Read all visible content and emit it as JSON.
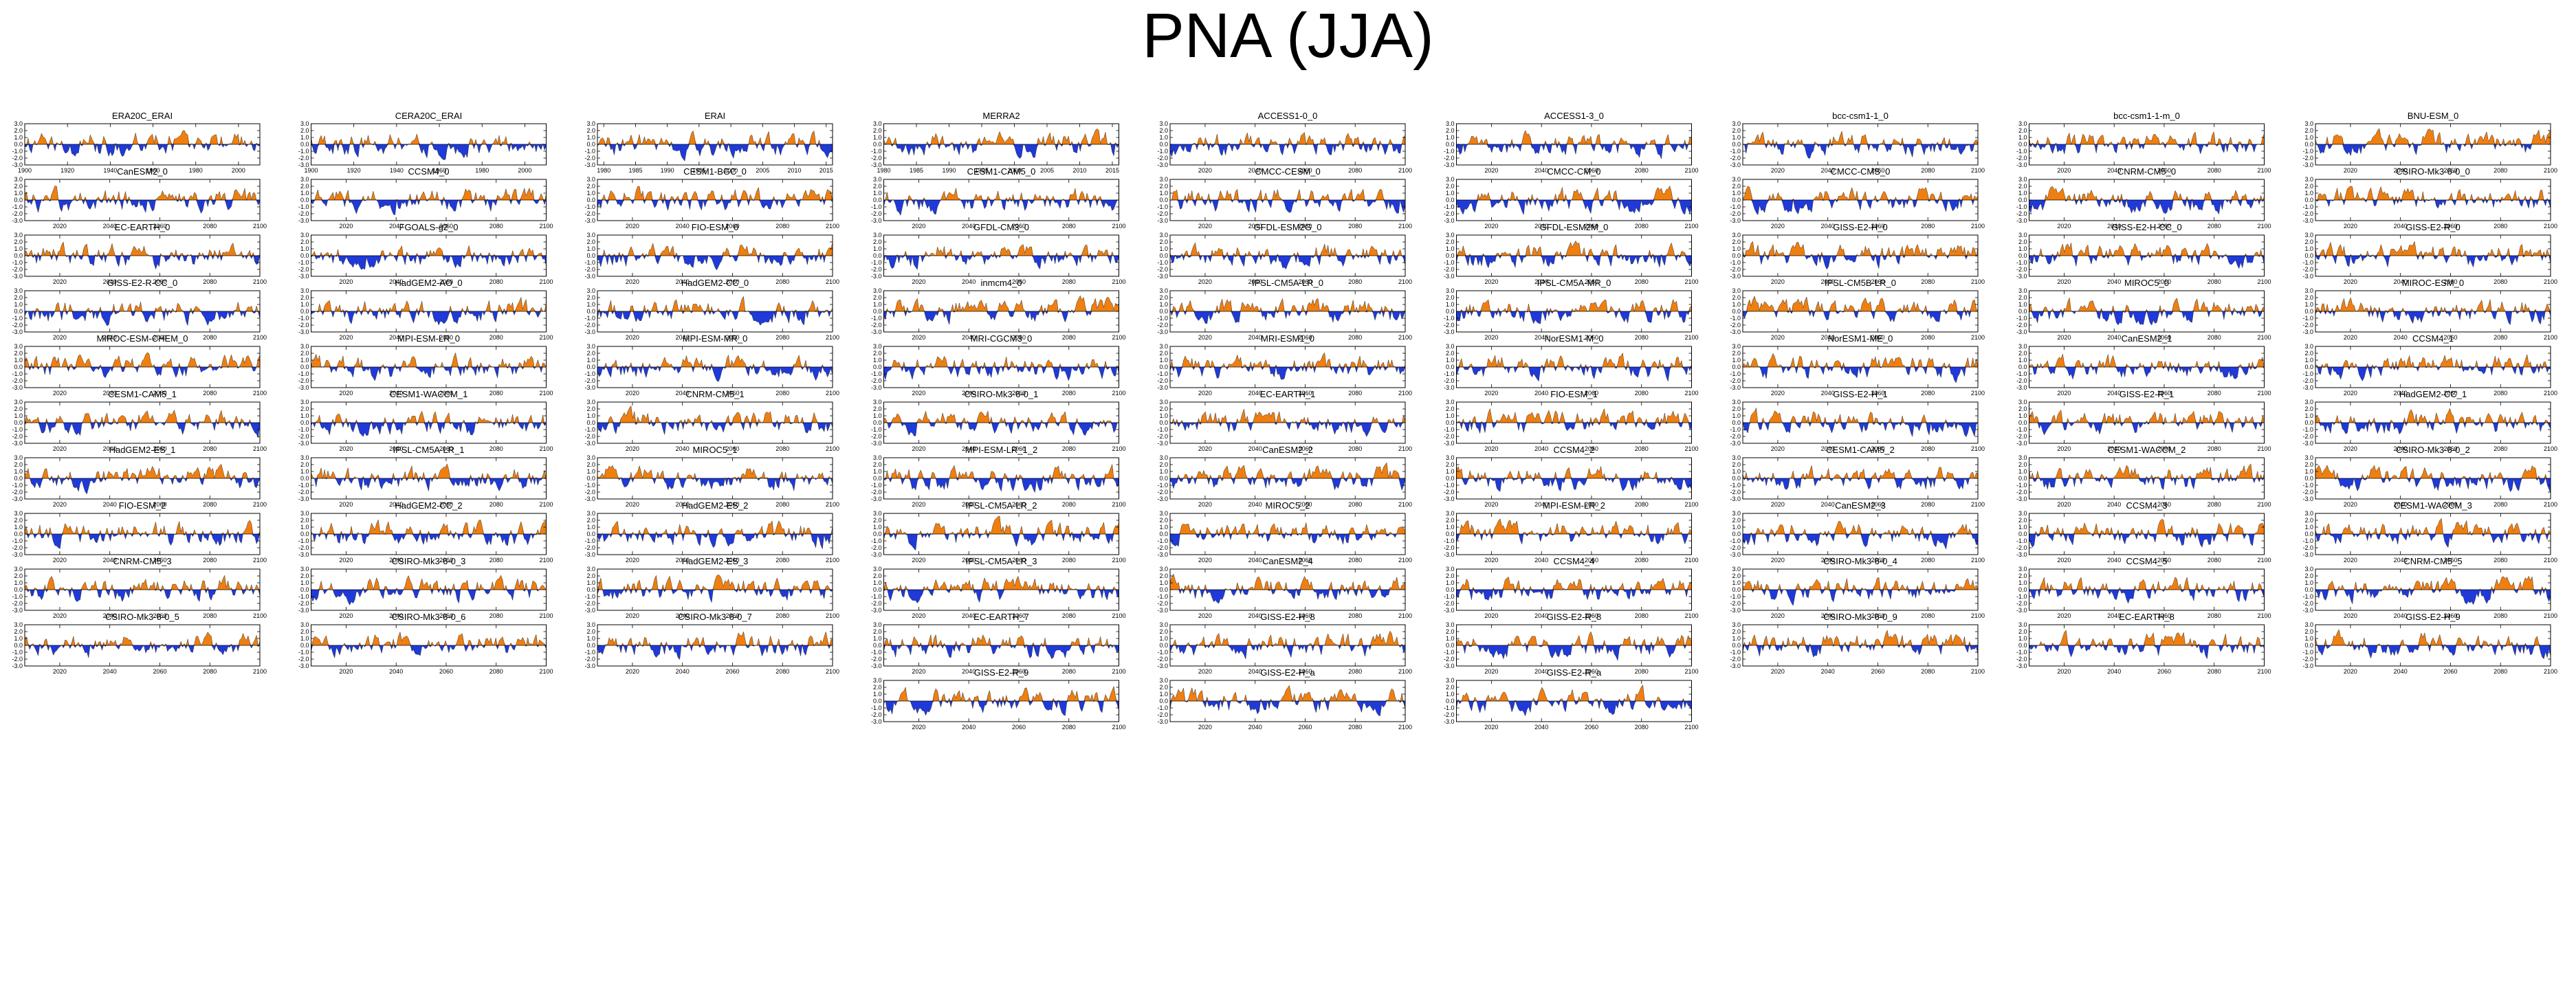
{
  "title": "PNA (JJA)",
  "colors": {
    "positive": "#f07f10",
    "negative": "#1f3ad9",
    "axis": "#000000"
  },
  "chart_data": {
    "type": "area",
    "ylim": [
      -3.0,
      3.0
    ],
    "y_ticks": [
      "3.0",
      "2.0",
      "1.0",
      "0.0",
      "-1.0",
      "-2.0",
      "-3.0"
    ],
    "grid": false,
    "legend": "none",
    "x_axes": {
      "era20c": {
        "xlim": [
          1900,
          2010
        ],
        "ticks": [
          "1900",
          "1920",
          "1940",
          "1960",
          "1980",
          "2000"
        ],
        "tick_values": [
          1900,
          1920,
          1940,
          1960,
          1980,
          2000
        ]
      },
      "erai": {
        "xlim": [
          1979,
          2016
        ],
        "ticks": [
          "1980",
          "1985",
          "1990",
          "1995",
          "2000",
          "2005",
          "2010",
          "2015"
        ],
        "tick_values": [
          1980,
          1985,
          1990,
          1995,
          2000,
          2005,
          2010,
          2015
        ]
      },
      "merra": {
        "xlim": [
          1980,
          2016
        ],
        "ticks": [
          "1980",
          "1985",
          "1990",
          "1995",
          "2000",
          "2005",
          "2010",
          "2015"
        ],
        "tick_values": [
          1980,
          1985,
          1990,
          1995,
          2000,
          2005,
          2010,
          2015
        ]
      },
      "future": {
        "xlim": [
          2006,
          2100
        ],
        "ticks": [
          "2020",
          "2040",
          "2060",
          "2080",
          "2100"
        ],
        "tick_values": [
          2020,
          2040,
          2060,
          2080,
          2100
        ]
      }
    },
    "panels": [
      {
        "name": "ERA20C_ERAI",
        "axis": "era20c"
      },
      {
        "name": "CERA20C_ERAI",
        "axis": "era20c"
      },
      {
        "name": "ERAI",
        "axis": "erai"
      },
      {
        "name": "MERRA2",
        "axis": "merra"
      },
      {
        "name": "ACCESS1-0_0",
        "axis": "future"
      },
      {
        "name": "ACCESS1-3_0",
        "axis": "future"
      },
      {
        "name": "bcc-csm1-1_0",
        "axis": "future"
      },
      {
        "name": "bcc-csm1-1-m_0",
        "axis": "future"
      },
      {
        "name": "BNU-ESM_0",
        "axis": "future"
      },
      {
        "name": "CanESM2_0",
        "axis": "future"
      },
      {
        "name": "CCSM4_0",
        "axis": "future"
      },
      {
        "name": "CESM1-BGC_0",
        "axis": "future"
      },
      {
        "name": "CESM1-CAM5_0",
        "axis": "future"
      },
      {
        "name": "CMCC-CESM_0",
        "axis": "future"
      },
      {
        "name": "CMCC-CM_0",
        "axis": "future"
      },
      {
        "name": "CMCC-CMS_0",
        "axis": "future"
      },
      {
        "name": "CNRM-CM5_0",
        "axis": "future"
      },
      {
        "name": "CSIRO-Mk3-6-0_0",
        "axis": "future"
      },
      {
        "name": "EC-EARTH_0",
        "axis": "future"
      },
      {
        "name": "FGOALS-g2_0",
        "axis": "future"
      },
      {
        "name": "FIO-ESM_0",
        "axis": "future"
      },
      {
        "name": "GFDL-CM3_0",
        "axis": "future"
      },
      {
        "name": "GFDL-ESM2G_0",
        "axis": "future"
      },
      {
        "name": "GFDL-ESM2M_0",
        "axis": "future"
      },
      {
        "name": "GISS-E2-H_0",
        "axis": "future"
      },
      {
        "name": "GISS-E2-H-CC_0",
        "axis": "future"
      },
      {
        "name": "GISS-E2-R_0",
        "axis": "future"
      },
      {
        "name": "GISS-E2-R-CC_0",
        "axis": "future"
      },
      {
        "name": "HadGEM2-AO_0",
        "axis": "future"
      },
      {
        "name": "HadGEM2-CC_0",
        "axis": "future"
      },
      {
        "name": "inmcm4_0",
        "axis": "future"
      },
      {
        "name": "IPSL-CM5A-LR_0",
        "axis": "future"
      },
      {
        "name": "IPSL-CM5A-MR_0",
        "axis": "future"
      },
      {
        "name": "IPSL-CM5B-LR_0",
        "axis": "future"
      },
      {
        "name": "MIROC5_0",
        "axis": "future"
      },
      {
        "name": "MIROC-ESM_0",
        "axis": "future"
      },
      {
        "name": "MIROC-ESM-CHEM_0",
        "axis": "future"
      },
      {
        "name": "MPI-ESM-LR_0",
        "axis": "future"
      },
      {
        "name": "MPI-ESM-MR_0",
        "axis": "future"
      },
      {
        "name": "MRI-CGCM3_0",
        "axis": "future"
      },
      {
        "name": "MRI-ESM1_0",
        "axis": "future"
      },
      {
        "name": "NorESM1-M_0",
        "axis": "future"
      },
      {
        "name": "NorESM1-ME_0",
        "axis": "future"
      },
      {
        "name": "CanESM2_1",
        "axis": "future"
      },
      {
        "name": "CCSM4_1",
        "axis": "future"
      },
      {
        "name": "CESM1-CAM5_1",
        "axis": "future"
      },
      {
        "name": "CESM1-WACCM_1",
        "axis": "future"
      },
      {
        "name": "CNRM-CM5_1",
        "axis": "future"
      },
      {
        "name": "CSIRO-Mk3-6-0_1",
        "axis": "future"
      },
      {
        "name": "EC-EARTH_1",
        "axis": "future"
      },
      {
        "name": "FIO-ESM_1",
        "axis": "future"
      },
      {
        "name": "GISS-E2-H_1",
        "axis": "future"
      },
      {
        "name": "GISS-E2-R_1",
        "axis": "future"
      },
      {
        "name": "HadGEM2-CC_1",
        "axis": "future"
      },
      {
        "name": "HadGEM2-ES_1",
        "axis": "future"
      },
      {
        "name": "IPSL-CM5A-LR_1",
        "axis": "future"
      },
      {
        "name": "MIROC5_1",
        "axis": "future"
      },
      {
        "name": "MPI-ESM-LR_1_2",
        "axis": "future"
      },
      {
        "name": "CanESM2_2",
        "axis": "future"
      },
      {
        "name": "CCSM4_2",
        "axis": "future"
      },
      {
        "name": "CESM1-CAM5_2",
        "axis": "future"
      },
      {
        "name": "CESM1-WACCM_2",
        "axis": "future"
      },
      {
        "name": "CSIRO-Mk3-6-0_2",
        "axis": "future"
      },
      {
        "name": "FIO-ESM_2",
        "axis": "future"
      },
      {
        "name": "HadGEM2-CC_2",
        "axis": "future"
      },
      {
        "name": "HadGEM2-ES_2",
        "axis": "future"
      },
      {
        "name": "IPSL-CM5A-LR_2",
        "axis": "future"
      },
      {
        "name": "MIROC5_2",
        "axis": "future"
      },
      {
        "name": "MPI-ESM-LR_2",
        "axis": "future"
      },
      {
        "name": "CanESM2_3",
        "axis": "future"
      },
      {
        "name": "CCSM4_3",
        "axis": "future"
      },
      {
        "name": "CESM1-WACCM_3",
        "axis": "future"
      },
      {
        "name": "CNRM-CM5_3",
        "axis": "future"
      },
      {
        "name": "CSIRO-Mk3-6-0_3",
        "axis": "future"
      },
      {
        "name": "HadGEM2-ES_3",
        "axis": "future"
      },
      {
        "name": "IPSL-CM5A-LR_3",
        "axis": "future"
      },
      {
        "name": "CanESM2_4",
        "axis": "future"
      },
      {
        "name": "CCSM4_4",
        "axis": "future"
      },
      {
        "name": "CSIRO-Mk3-6-0_4",
        "axis": "future"
      },
      {
        "name": "CCSM4_5",
        "axis": "future"
      },
      {
        "name": "CNRM-CM5_5",
        "axis": "future"
      },
      {
        "name": "CSIRO-Mk3-6-0_5",
        "axis": "future"
      },
      {
        "name": "CSIRO-Mk3-6-0_6",
        "axis": "future"
      },
      {
        "name": "CSIRO-Mk3-6-0_7",
        "axis": "future"
      },
      {
        "name": "EC-EARTH_7",
        "axis": "future"
      },
      {
        "name": "GISS-E2-H_8",
        "axis": "future"
      },
      {
        "name": "GISS-E2-R_8",
        "axis": "future"
      },
      {
        "name": "CSIRO-Mk3-6-0_9",
        "axis": "future"
      },
      {
        "name": "EC-EARTH_8",
        "axis": "future"
      },
      {
        "name": "GISS-E2-H_9",
        "axis": "future"
      },
      {
        "name": "GISS-E2-R_9",
        "axis": "future"
      },
      {
        "name": "GISS-E2-H_a",
        "axis": "future"
      },
      {
        "name": "GISS-E2-R_a",
        "axis": "future"
      }
    ]
  }
}
